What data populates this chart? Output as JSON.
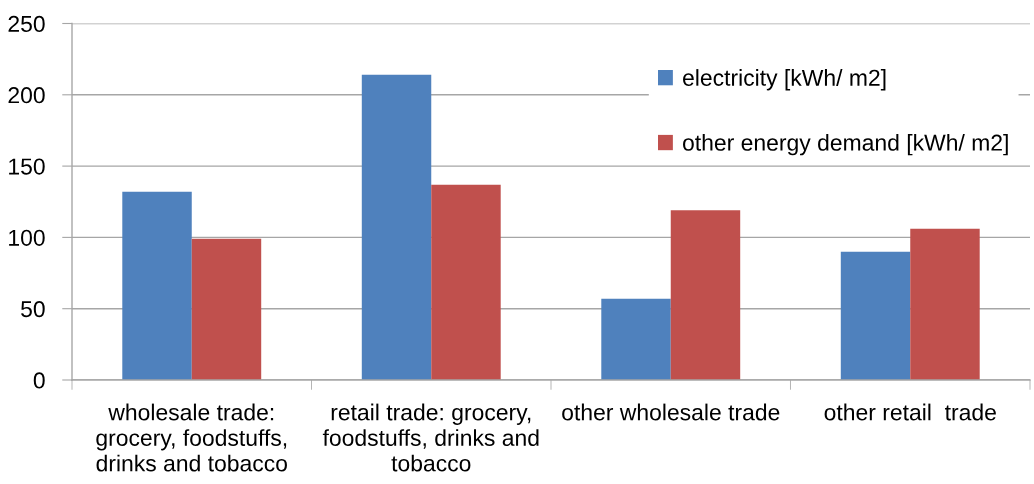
{
  "chart_data": {
    "type": "bar",
    "categories": [
      "wholesale trade: grocery, foodstuffs, drinks and tobacco",
      "retail trade: grocery, foodstuffs, drinks and tobacco",
      "other wholesale trade",
      "other retail  trade"
    ],
    "series": [
      {
        "name": "electricity [kWh/ m2]",
        "color": "#4f81bd",
        "values": [
          132,
          214,
          57,
          90
        ]
      },
      {
        "name": "other energy demand [kWh/ m2]",
        "color": "#c0504d",
        "values": [
          99,
          137,
          119,
          106
        ]
      }
    ],
    "ylim": [
      0,
      250
    ],
    "yticks": [
      0,
      50,
      100,
      150,
      200,
      250
    ],
    "grid": "y",
    "legend": "top right"
  }
}
